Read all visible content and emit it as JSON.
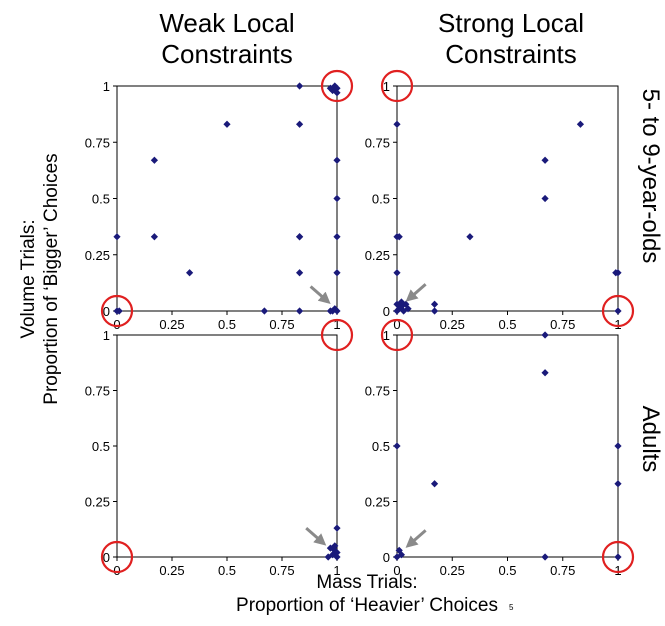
{
  "figure": {
    "col_titles": [
      "Weak Local Constraints",
      "Strong Local Constraints"
    ],
    "row_labels": [
      "5- to 9-year-olds",
      "Adults"
    ],
    "y_title": [
      "Volume Trials:",
      "Proportion of ‘Bigger’ Choices"
    ],
    "x_title": [
      "Mass Trials:",
      "Proportion of ‘Heavier’ Choices"
    ],
    "footnote": "5",
    "point_color": "#1a1a7a",
    "circle_color": "#e02020",
    "arrow_color": "#8a8a8a"
  },
  "chart_data": [
    {
      "type": "scatter",
      "title": "Weak Local Constraints",
      "row": "5- to 9-year-olds",
      "xlim": [
        0,
        1
      ],
      "ylim": [
        0,
        1
      ],
      "x_ticks": [
        "0",
        "0.25",
        "0.5",
        "0.75",
        "1"
      ],
      "y_ticks": [
        "0",
        "0.25",
        "0.5",
        "0.75",
        "1"
      ],
      "points": [
        [
          0,
          0.33
        ],
        [
          0,
          0
        ],
        [
          0.01,
          0
        ],
        [
          0.17,
          0.67
        ],
        [
          0.17,
          0.33
        ],
        [
          0.33,
          0.17
        ],
        [
          0.5,
          0.83
        ],
        [
          0.67,
          0
        ],
        [
          0.83,
          1
        ],
        [
          0.83,
          0.83
        ],
        [
          0.83,
          0.33
        ],
        [
          0.83,
          0.33
        ],
        [
          0.83,
          0.17
        ],
        [
          0.83,
          0
        ],
        [
          0.99,
          1
        ],
        [
          0.98,
          0.98
        ],
        [
          1,
          0.99
        ],
        [
          0.97,
          0.99
        ],
        [
          1,
          0.97
        ],
        [
          1,
          0.67
        ],
        [
          1,
          0.5
        ],
        [
          1,
          0.33
        ],
        [
          1,
          0.17
        ],
        [
          0.98,
          0
        ],
        [
          1,
          0
        ],
        [
          0.99,
          0.01
        ],
        [
          0.97,
          0
        ]
      ],
      "circles": [
        [
          0,
          0
        ],
        [
          1,
          1
        ]
      ],
      "arrow_to": [
        0.98,
        0.02
      ]
    },
    {
      "type": "scatter",
      "title": "Strong Local Constraints",
      "row": "5- to 9-year-olds",
      "xlim": [
        0,
        1
      ],
      "ylim": [
        0,
        1
      ],
      "x_ticks": [
        "0",
        "0.25",
        "0.5",
        "0.75",
        "1"
      ],
      "y_ticks": [
        "0",
        "0.25",
        "0.5",
        "0.75",
        "1"
      ],
      "points": [
        [
          0,
          0.83
        ],
        [
          0,
          0.33
        ],
        [
          0.01,
          0.33
        ],
        [
          0,
          0.17
        ],
        [
          0,
          0
        ],
        [
          0.01,
          0.01
        ],
        [
          0.02,
          0.02
        ],
        [
          0.03,
          0
        ],
        [
          0.04,
          0.03
        ],
        [
          0.02,
          0.04
        ],
        [
          0,
          0.03
        ],
        [
          0.05,
          0.01
        ],
        [
          0.17,
          0.03
        ],
        [
          0.17,
          0
        ],
        [
          0.33,
          0.33
        ],
        [
          0.67,
          0.67
        ],
        [
          0.67,
          0.5
        ],
        [
          0.83,
          0.83
        ],
        [
          1,
          0.17
        ],
        [
          0.99,
          0.17
        ],
        [
          1,
          0
        ]
      ],
      "circles": [
        [
          0,
          1
        ],
        [
          1,
          0
        ]
      ],
      "arrow_to": [
        0.03,
        0.03
      ]
    },
    {
      "type": "scatter",
      "title": "Weak Local Constraints",
      "row": "Adults",
      "xlim": [
        0,
        1
      ],
      "ylim": [
        0,
        1
      ],
      "x_ticks": [
        "0",
        "0.25",
        "0.5",
        "0.75",
        "1"
      ],
      "y_ticks": [
        "0",
        "0.25",
        "0.5",
        "0.75",
        "1"
      ],
      "points": [
        [
          1,
          0.13
        ],
        [
          0.97,
          0.04
        ],
        [
          0.99,
          0.05
        ],
        [
          1,
          0.02
        ],
        [
          0.98,
          0.01
        ],
        [
          0.96,
          0
        ],
        [
          1,
          0
        ],
        [
          0.99,
          0.03
        ]
      ],
      "circles": [
        [
          0,
          0
        ],
        [
          1,
          1
        ]
      ],
      "arrow_to": [
        0.96,
        0.04
      ]
    },
    {
      "type": "scatter",
      "title": "Strong Local Constraints",
      "row": "Adults",
      "xlim": [
        0,
        1
      ],
      "ylim": [
        0,
        1
      ],
      "x_ticks": [
        "0",
        "0.25",
        "0.5",
        "0.75",
        "1"
      ],
      "y_ticks": [
        "0",
        "0.25",
        "0.5",
        "0.75",
        "1"
      ],
      "points": [
        [
          0,
          0.5
        ],
        [
          0,
          0
        ],
        [
          0.02,
          0.01
        ],
        [
          0.01,
          0.03
        ],
        [
          0.17,
          0.33
        ],
        [
          0.67,
          1
        ],
        [
          0.67,
          0.83
        ],
        [
          0.67,
          0
        ],
        [
          1,
          0.5
        ],
        [
          1,
          0.33
        ],
        [
          1,
          0
        ]
      ],
      "circles": [
        [
          0,
          1
        ],
        [
          1,
          0
        ]
      ],
      "arrow_to": [
        0.03,
        0.03
      ]
    }
  ]
}
